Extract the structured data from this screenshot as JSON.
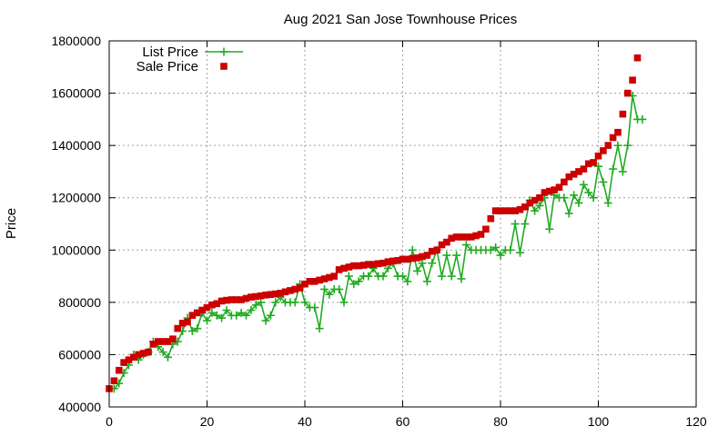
{
  "chart_data": {
    "type": "line",
    "title": "Aug 2021 San Jose Townhouse Prices",
    "xlabel": "",
    "ylabel": "Price",
    "xlim": [
      0,
      120
    ],
    "ylim": [
      400000,
      1800000
    ],
    "xticks": [
      0,
      20,
      40,
      60,
      80,
      100,
      120
    ],
    "yticks": [
      400000,
      600000,
      800000,
      1000000,
      1200000,
      1400000,
      1600000,
      1800000
    ],
    "grid": true,
    "legend_position": "top-left",
    "series": [
      {
        "name": "List Price",
        "style": "linespoints",
        "color": "#22aa22",
        "x": [
          1,
          2,
          3,
          4,
          5,
          6,
          7,
          8,
          9,
          10,
          11,
          12,
          13,
          14,
          15,
          16,
          17,
          18,
          19,
          20,
          21,
          22,
          23,
          24,
          25,
          26,
          27,
          28,
          29,
          30,
          31,
          32,
          33,
          34,
          35,
          36,
          37,
          38,
          39,
          40,
          41,
          42,
          43,
          44,
          45,
          46,
          47,
          48,
          49,
          50,
          51,
          52,
          53,
          54,
          55,
          56,
          57,
          58,
          59,
          60,
          61,
          62,
          63,
          64,
          65,
          66,
          67,
          68,
          69,
          70,
          71,
          72,
          73,
          74,
          75,
          76,
          77,
          78,
          79,
          80,
          81,
          82,
          83,
          84,
          85,
          86,
          87,
          88,
          89,
          90,
          91,
          92,
          93,
          94,
          95,
          96,
          97,
          98,
          99,
          100,
          101,
          102,
          103,
          104,
          105,
          106,
          107,
          108,
          109
        ],
        "values": [
          470000,
          490000,
          530000,
          560000,
          600000,
          580000,
          600000,
          610000,
          650000,
          630000,
          610000,
          590000,
          640000,
          650000,
          690000,
          740000,
          690000,
          700000,
          760000,
          730000,
          760000,
          750000,
          740000,
          770000,
          750000,
          750000,
          760000,
          750000,
          770000,
          790000,
          800000,
          730000,
          750000,
          800000,
          820000,
          800000,
          800000,
          800000,
          870000,
          800000,
          780000,
          780000,
          700000,
          850000,
          830000,
          850000,
          850000,
          800000,
          900000,
          870000,
          880000,
          900000,
          900000,
          930000,
          900000,
          900000,
          930000,
          950000,
          900000,
          900000,
          880000,
          1000000,
          920000,
          950000,
          880000,
          950000,
          1000000,
          900000,
          980000,
          900000,
          980000,
          890000,
          1020000,
          1000000,
          1000000,
          1000000,
          1000000,
          1000000,
          1010000,
          980000,
          1000000,
          1000000,
          1100000,
          990000,
          1100000,
          1190000,
          1150000,
          1170000,
          1200000,
          1080000,
          1210000,
          1200000,
          1200000,
          1140000,
          1210000,
          1180000,
          1250000,
          1220000,
          1200000,
          1320000,
          1260000,
          1180000,
          1310000,
          1400000,
          1300000,
          1400000,
          1590000,
          1500000,
          1500000
        ]
      },
      {
        "name": "Sale Price",
        "style": "points",
        "color": "#cc0000",
        "x": [
          0,
          1,
          2,
          3,
          4,
          5,
          6,
          7,
          8,
          9,
          10,
          11,
          12,
          13,
          14,
          15,
          16,
          17,
          18,
          19,
          20,
          21,
          22,
          23,
          24,
          25,
          26,
          27,
          28,
          29,
          30,
          31,
          32,
          33,
          34,
          35,
          36,
          37,
          38,
          39,
          40,
          41,
          42,
          43,
          44,
          45,
          46,
          47,
          48,
          49,
          50,
          51,
          52,
          53,
          54,
          55,
          56,
          57,
          58,
          59,
          60,
          61,
          62,
          63,
          64,
          65,
          66,
          67,
          68,
          69,
          70,
          71,
          72,
          73,
          74,
          75,
          76,
          77,
          78,
          79,
          80,
          81,
          82,
          83,
          84,
          85,
          86,
          87,
          88,
          89,
          90,
          91,
          92,
          93,
          94,
          95,
          96,
          97,
          98,
          99,
          100,
          101,
          102,
          103,
          104,
          105,
          106,
          107,
          108
        ],
        "values": [
          470000,
          500000,
          540000,
          570000,
          580000,
          590000,
          600000,
          605000,
          610000,
          640000,
          650000,
          650000,
          650000,
          660000,
          700000,
          720000,
          725000,
          750000,
          760000,
          770000,
          780000,
          790000,
          795000,
          805000,
          808000,
          810000,
          810000,
          810000,
          815000,
          820000,
          822000,
          825000,
          828000,
          830000,
          832000,
          835000,
          840000,
          845000,
          850000,
          855000,
          870000,
          880000,
          880000,
          885000,
          890000,
          895000,
          900000,
          925000,
          930000,
          935000,
          940000,
          940000,
          942000,
          945000,
          945000,
          948000,
          950000,
          955000,
          958000,
          960000,
          965000,
          965000,
          968000,
          970000,
          975000,
          980000,
          995000,
          1000000,
          1020000,
          1030000,
          1045000,
          1050000,
          1050000,
          1050000,
          1050000,
          1055000,
          1060000,
          1080000,
          1120000,
          1150000,
          1150000,
          1150000,
          1150000,
          1150000,
          1155000,
          1165000,
          1180000,
          1190000,
          1200000,
          1220000,
          1225000,
          1230000,
          1240000,
          1260000,
          1280000,
          1290000,
          1300000,
          1310000,
          1330000,
          1335000,
          1360000,
          1380000,
          1400000,
          1430000,
          1450000,
          1520000,
          1600000,
          1650000,
          1735000
        ]
      }
    ]
  }
}
